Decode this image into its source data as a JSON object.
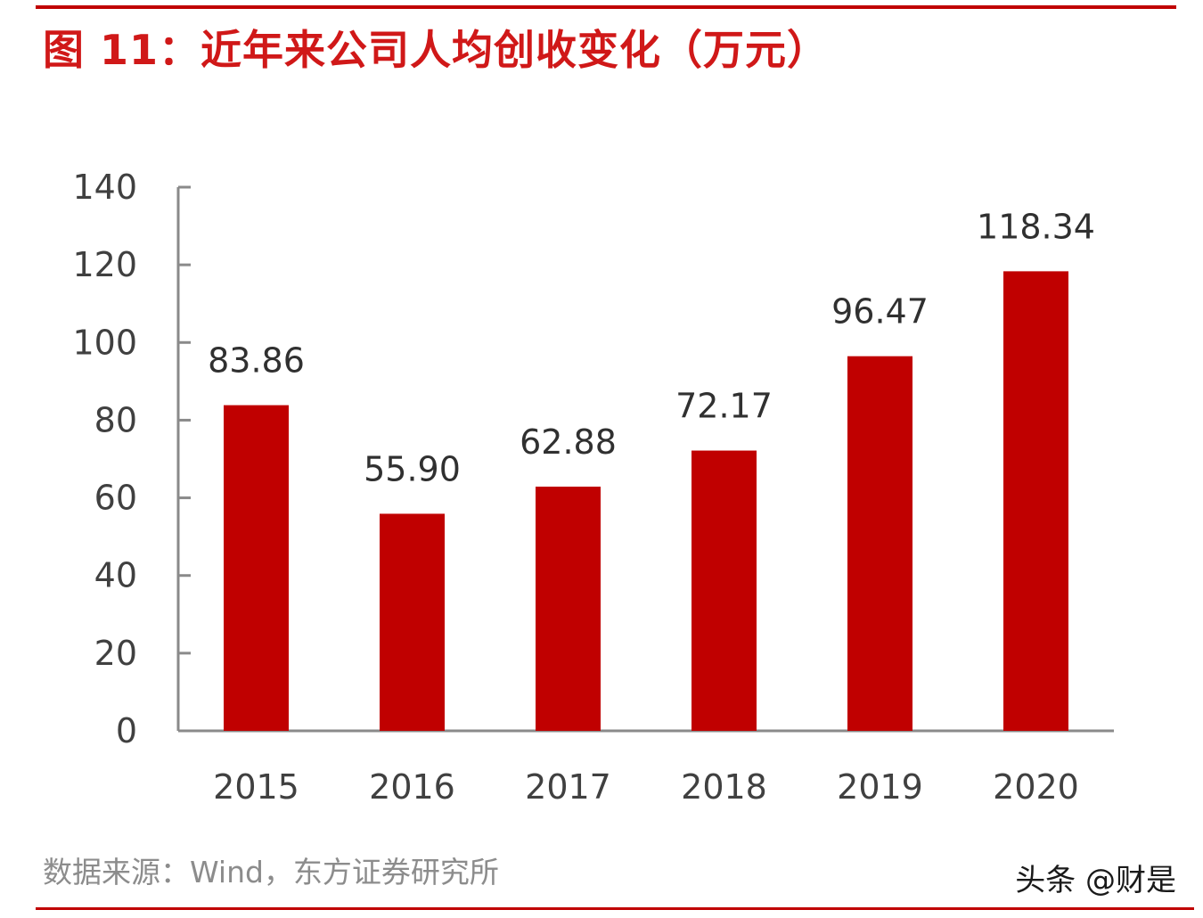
{
  "title": "图 11：近年来公司人均创收变化（万元）",
  "source": "数据来源：Wind，东方证券研究所",
  "watermark": "头条 @财是",
  "colors": {
    "bar": "#c00000",
    "title": "#d01818",
    "axis": "#8a8a8a",
    "rule": "#c00000"
  },
  "chart_data": {
    "type": "bar",
    "categories": [
      "2015",
      "2016",
      "2017",
      "2018",
      "2019",
      "2020"
    ],
    "values": [
      83.86,
      55.9,
      62.88,
      72.17,
      96.47,
      118.34
    ],
    "value_labels": [
      "83.86",
      "55.90",
      "62.88",
      "72.17",
      "96.47",
      "118.34"
    ],
    "ylim": [
      0,
      140
    ],
    "yticks": [
      0,
      20,
      40,
      60,
      80,
      100,
      120,
      140
    ],
    "xlabel": "",
    "ylabel": "",
    "grid": false,
    "legend": "none"
  }
}
